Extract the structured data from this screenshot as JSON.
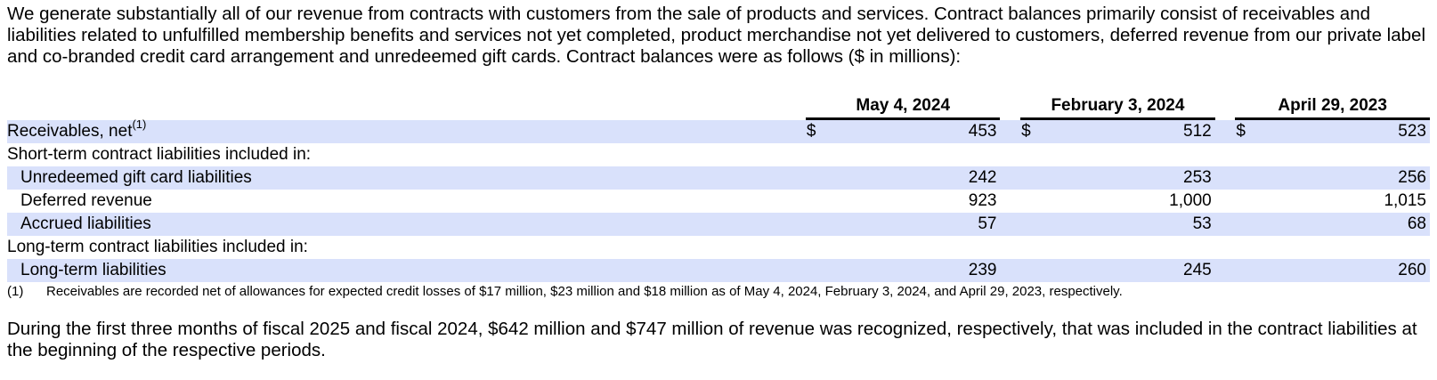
{
  "intro_paragraph": "We generate substantially all of our revenue from contracts with customers from the sale of products and services. Contract balances primarily consist of receivables and liabilities related to unfulfilled membership benefits and services not yet completed, product merchandise not yet delivered to customers, deferred revenue from our private label and co-branded credit card arrangement and unredeemed gift cards. Contract balances were as follows ($ in millions):",
  "table": {
    "columns": [
      "May 4, 2024",
      "February 3, 2024",
      "April 29, 2023"
    ],
    "currency_symbol": "$",
    "rows": [
      {
        "label": "Receivables, net",
        "footnote_ref": "(1)",
        "values": [
          "453",
          "512",
          "523"
        ]
      },
      {
        "label": "Short-term contract liabilities included in:",
        "values": [
          "",
          "",
          ""
        ]
      },
      {
        "label": "Unredeemed gift card liabilities",
        "values": [
          "242",
          "253",
          "256"
        ]
      },
      {
        "label": "Deferred revenue",
        "values": [
          "923",
          "1,000",
          "1,015"
        ]
      },
      {
        "label": "Accrued liabilities",
        "values": [
          "57",
          "53",
          "68"
        ]
      },
      {
        "label": "Long-term contract liabilities included in:",
        "values": [
          "",
          "",
          ""
        ]
      },
      {
        "label": "Long-term liabilities",
        "values": [
          "239",
          "245",
          "260"
        ]
      }
    ]
  },
  "footnote": {
    "marker": "(1)",
    "text": "Receivables are recorded net of allowances for expected credit losses of $17 million, $23 million and $18 million as of May 4, 2024, February 3, 2024, and April 29, 2023, respectively."
  },
  "closing_paragraph": "During the first three months of fiscal 2025 and fiscal 2024, $642 million and $747 million of revenue was recognized, respectively, that was included in the contract liabilities at the beginning of the respective periods.",
  "colors": {
    "row_shade": "#d9e1fb"
  }
}
